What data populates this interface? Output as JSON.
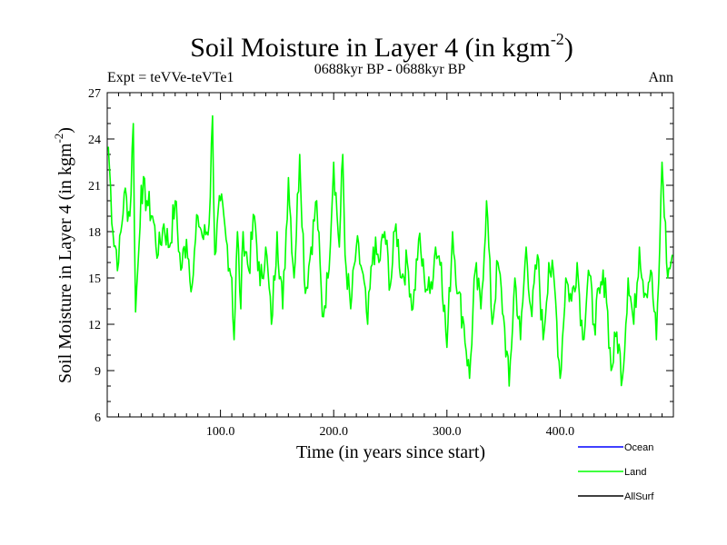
{
  "chart_data": {
    "type": "line",
    "title": "Soil Moisture in Layer 4 (in kgm",
    "title_sup": "-2",
    "title_close": ")",
    "subtitle_left": "Expt = teVVe-teVTe1",
    "subtitle_center": "0688kyr BP - 0688kyr BP",
    "subtitle_right": "Ann",
    "xlabel": "Time (in years since start)",
    "ylabel": "Soil Moisture in Layer 4 (in kgm",
    "ylabel_sup": "-2",
    "ylabel_close": ")",
    "xlim": [
      0,
      500
    ],
    "ylim": [
      6,
      27
    ],
    "x_ticks": [
      100,
      200,
      300,
      400
    ],
    "x_tick_labels": [
      "100.0",
      "200.0",
      "300.0",
      "400.0"
    ],
    "y_ticks": [
      6,
      9,
      12,
      15,
      18,
      21,
      24,
      27
    ],
    "y_tick_labels": [
      "6",
      "9",
      "12",
      "15",
      "18",
      "21",
      "24",
      "27"
    ],
    "grid": false,
    "legend": [
      {
        "name": "Ocean",
        "color": "#0000ff"
      },
      {
        "name": "Land",
        "color": "#00ff00"
      },
      {
        "name": "AllSurf",
        "color": "#000000"
      }
    ],
    "series": [
      {
        "name": "Land",
        "color": "#00ff00",
        "x": [
          1,
          5,
          10,
          15,
          20,
          23,
          25,
          28,
          30,
          35,
          40,
          45,
          50,
          55,
          60,
          65,
          70,
          75,
          80,
          85,
          90,
          93,
          95,
          100,
          105,
          110,
          112,
          115,
          118,
          120,
          125,
          130,
          135,
          140,
          145,
          150,
          155,
          160,
          165,
          170,
          175,
          180,
          185,
          190,
          195,
          200,
          205,
          208,
          210,
          215,
          220,
          225,
          230,
          235,
          240,
          245,
          250,
          255,
          260,
          265,
          270,
          275,
          280,
          285,
          290,
          295,
          300,
          305,
          310,
          315,
          320,
          325,
          330,
          335,
          340,
          345,
          350,
          355,
          360,
          365,
          370,
          375,
          380,
          385,
          390,
          395,
          400,
          405,
          410,
          415,
          420,
          425,
          430,
          435,
          440,
          445,
          450,
          455,
          460,
          465,
          470,
          475,
          480,
          485,
          488,
          490,
          495,
          499
        ],
        "values": [
          23.5,
          18,
          16,
          20.5,
          19,
          25,
          12.8,
          17,
          21,
          20,
          19,
          16.5,
          18.5,
          17,
          20,
          15.5,
          17.5,
          14.5,
          19,
          17.5,
          18.5,
          25.5,
          16.5,
          20,
          17.5,
          15,
          11,
          18,
          13,
          18,
          15.5,
          19,
          14.5,
          17,
          12,
          18,
          13,
          21.5,
          15,
          23,
          14,
          17,
          20,
          12.5,
          15,
          22.5,
          17,
          23,
          16.5,
          13,
          17,
          15.5,
          12,
          17,
          16,
          18,
          14.5,
          18.5,
          15,
          16,
          13,
          17.5,
          15,
          14,
          17,
          16,
          10.5,
          18,
          14,
          12,
          8.5,
          15.5,
          13,
          20,
          12,
          16,
          12.5,
          8,
          15,
          11,
          17,
          12.5,
          16.5,
          11,
          16,
          14.5,
          8.5,
          15,
          13.5,
          16,
          11,
          15.5,
          12,
          14,
          15,
          9,
          11.5,
          8.5,
          15,
          12,
          17,
          14,
          15.5,
          11,
          17,
          22.5,
          15,
          16.5
        ]
      }
    ]
  }
}
